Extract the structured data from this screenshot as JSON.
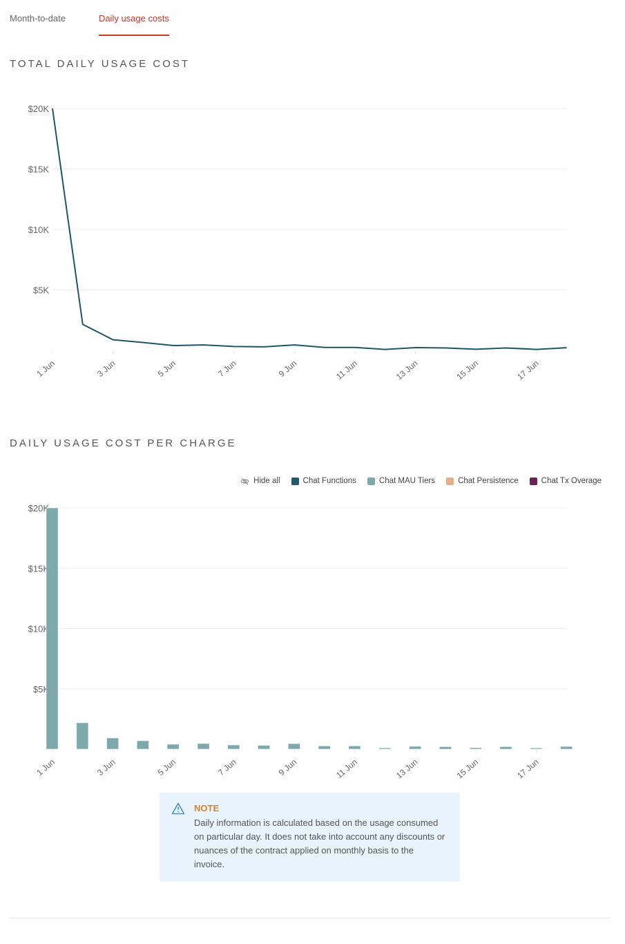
{
  "tabs": [
    {
      "label": "Month-to-date",
      "active": false
    },
    {
      "label": "Daily usage costs",
      "active": true
    }
  ],
  "colors": {
    "accent": "#c0392b",
    "line": "#1f5566",
    "chat_functions": "#235a6b",
    "chat_mau_tiers": "#7fa8ad",
    "chat_persistence": "#e3b08f",
    "chat_tx_overage": "#6a2356",
    "note_title": "#d9822b",
    "note_bg": "#e8f3fb"
  },
  "line_section": {
    "title": "TOTAL DAILY USAGE COST"
  },
  "bar_section": {
    "title": "DAILY USAGE COST PER CHARGE"
  },
  "legend": {
    "hide_all": "Hide all",
    "items": [
      {
        "label": "Chat Functions",
        "color": "#235a6b"
      },
      {
        "label": "Chat MAU Tiers",
        "color": "#7fa8ad"
      },
      {
        "label": "Chat Persistence",
        "color": "#e3b08f"
      },
      {
        "label": "Chat Tx Overage",
        "color": "#6a2356"
      }
    ]
  },
  "note": {
    "title": "NOTE",
    "body": "Daily information is calculated based on the usage consumed on particular day. It does not take into account any discounts or nuances of the contract applied on monthly basis to the invoice."
  },
  "chart_data": [
    {
      "type": "line",
      "title": "TOTAL DAILY USAGE COST",
      "xlabel": "",
      "ylabel": "",
      "x": [
        "1 Jun",
        "2 Jun",
        "3 Jun",
        "4 Jun",
        "5 Jun",
        "6 Jun",
        "7 Jun",
        "8 Jun",
        "9 Jun",
        "10 Jun",
        "11 Jun",
        "12 Jun",
        "13 Jun",
        "14 Jun",
        "15 Jun",
        "16 Jun",
        "17 Jun",
        "18 Jun"
      ],
      "x_tick_labels": [
        "1 Jun",
        "3 Jun",
        "5 Jun",
        "7 Jun",
        "9 Jun",
        "11 Jun",
        "13 Jun",
        "15 Jun",
        "17 Jun"
      ],
      "y_tick_labels": [
        "$5K",
        "$10K",
        "$15K",
        "$20K"
      ],
      "ylim": [
        0,
        20000
      ],
      "grid": true,
      "series": [
        {
          "name": "Total",
          "values": [
            20000,
            2150,
            880,
            650,
            400,
            450,
            320,
            290,
            450,
            240,
            240,
            80,
            230,
            200,
            90,
            200,
            80,
            220
          ]
        }
      ]
    },
    {
      "type": "bar",
      "title": "DAILY USAGE COST PER CHARGE",
      "xlabel": "",
      "ylabel": "",
      "categories": [
        "1 Jun",
        "2 Jun",
        "3 Jun",
        "4 Jun",
        "5 Jun",
        "6 Jun",
        "7 Jun",
        "8 Jun",
        "9 Jun",
        "10 Jun",
        "11 Jun",
        "12 Jun",
        "13 Jun",
        "14 Jun",
        "15 Jun",
        "16 Jun",
        "17 Jun",
        "18 Jun"
      ],
      "x_tick_labels": [
        "1 Jun",
        "3 Jun",
        "5 Jun",
        "7 Jun",
        "9 Jun",
        "11 Jun",
        "13 Jun",
        "15 Jun",
        "17 Jun"
      ],
      "y_tick_labels": [
        "$5K",
        "$10K",
        "$15K",
        "$20K"
      ],
      "ylim": [
        0,
        20000
      ],
      "grid": true,
      "legend_position": "top-right",
      "series": [
        {
          "name": "Chat Functions",
          "values": [
            0,
            0,
            0,
            0,
            0,
            0,
            0,
            0,
            0,
            0,
            0,
            0,
            0,
            0,
            0,
            0,
            0,
            0
          ]
        },
        {
          "name": "Chat MAU Tiers",
          "values": [
            20000,
            2180,
            920,
            690,
            400,
            460,
            340,
            310,
            450,
            260,
            260,
            100,
            230,
            200,
            110,
            200,
            90,
            220
          ]
        },
        {
          "name": "Chat Persistence",
          "values": [
            0,
            0,
            0,
            0,
            0,
            0,
            0,
            0,
            0,
            0,
            0,
            0,
            0,
            0,
            0,
            0,
            0,
            0
          ]
        },
        {
          "name": "Chat Tx Overage",
          "values": [
            0,
            0,
            0,
            0,
            0,
            0,
            0,
            0,
            0,
            0,
            0,
            0,
            0,
            0,
            0,
            0,
            0,
            0
          ]
        }
      ]
    }
  ]
}
